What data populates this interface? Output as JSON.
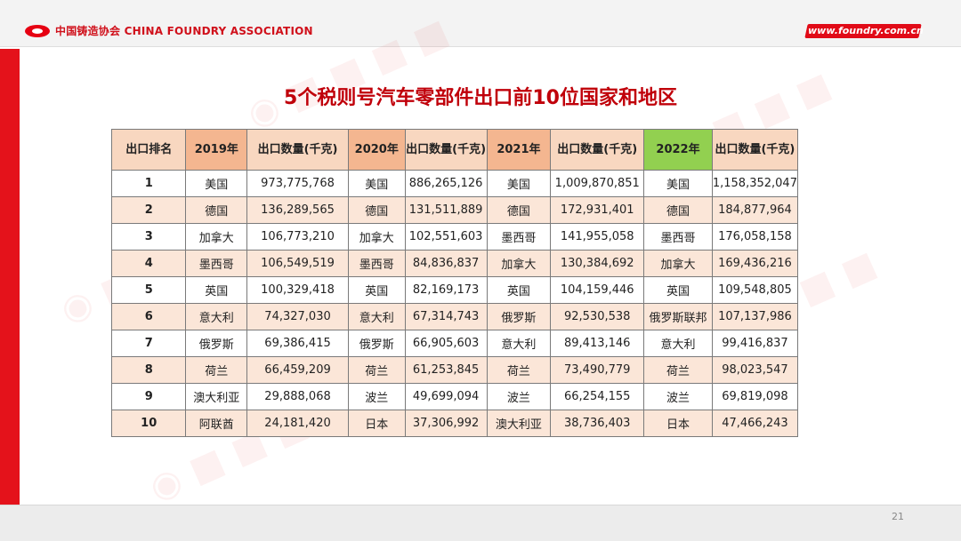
{
  "header": {
    "org_name": "中国铸造协会 CHINA FOUNDRY ASSOCIATION",
    "site": "www.foundry.com.cn",
    "brand_color": "#e4121b"
  },
  "slide": {
    "title": "5个税则号汽车零部件出口前10位国家和地区",
    "page_number": "21"
  },
  "table": {
    "headers": [
      "出口排名",
      "2019年",
      "出口数量(千克)",
      "2020年",
      "出口数量(千克)",
      "2021年",
      "出口数量(千克)",
      "2022年",
      "出口数量(千克)"
    ],
    "rows": [
      [
        "1",
        "美国",
        "973,775,768",
        "美国",
        "886,265,126",
        "美国",
        "1,009,870,851",
        "美国",
        "1,158,352,047"
      ],
      [
        "2",
        "德国",
        "136,289,565",
        "德国",
        "131,511,889",
        "德国",
        "172,931,401",
        "德国",
        "184,877,964"
      ],
      [
        "3",
        "加拿大",
        "106,773,210",
        "加拿大",
        "102,551,603",
        "墨西哥",
        "141,955,058",
        "墨西哥",
        "176,058,158"
      ],
      [
        "4",
        "墨西哥",
        "106,549,519",
        "墨西哥",
        "84,836,837",
        "加拿大",
        "130,384,692",
        "加拿大",
        "169,436,216"
      ],
      [
        "5",
        "英国",
        "100,329,418",
        "英国",
        "82,169,173",
        "英国",
        "104,159,446",
        "英国",
        "109,548,805"
      ],
      [
        "6",
        "意大利",
        "74,327,030",
        "意大利",
        "67,314,743",
        "俄罗斯",
        "92,530,538",
        "俄罗斯联邦",
        "107,137,986"
      ],
      [
        "7",
        "俄罗斯",
        "69,386,415",
        "俄罗斯",
        "66,905,603",
        "意大利",
        "89,413,146",
        "意大利",
        "99,416,837"
      ],
      [
        "8",
        "荷兰",
        "66,459,209",
        "荷兰",
        "61,253,845",
        "荷兰",
        "73,490,779",
        "荷兰",
        "98,023,547"
      ],
      [
        "9",
        "澳大利亚",
        "29,888,068",
        "波兰",
        "49,699,094",
        "波兰",
        "66,254,155",
        "波兰",
        "69,819,098"
      ],
      [
        "10",
        "阿联酋",
        "24,181,420",
        "日本",
        "37,306,992",
        "澳大利亚",
        "38,736,403",
        "日本",
        "47,466,243"
      ]
    ]
  }
}
